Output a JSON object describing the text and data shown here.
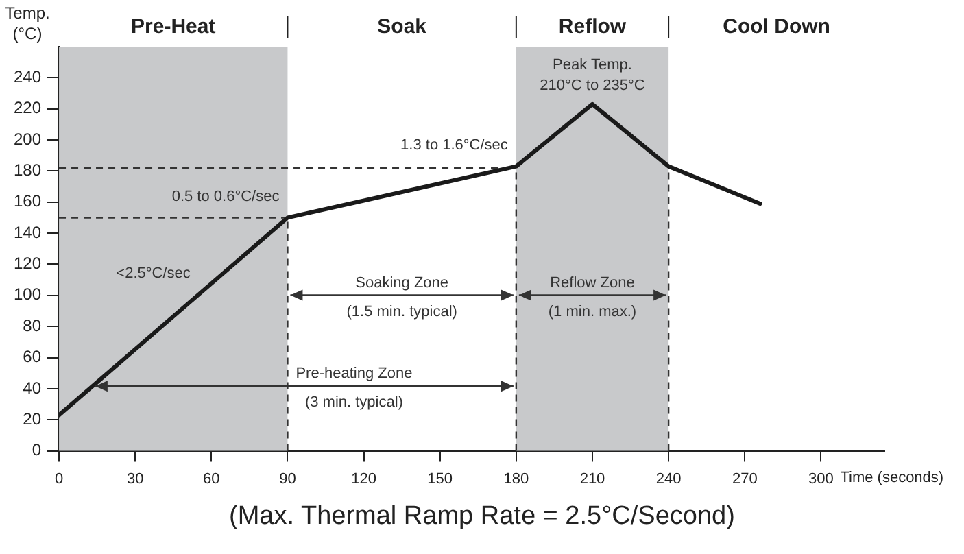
{
  "chart_data": {
    "type": "line",
    "xlabel": "Time (seconds)",
    "ylabel": "Temp.\n(°C)",
    "x": [
      0,
      90,
      180,
      210,
      240,
      276
    ],
    "series": [
      {
        "color": "#1a1a1a",
        "values": [
          23,
          150,
          183,
          223,
          183,
          159
        ]
      }
    ],
    "xlim": [
      0,
      325
    ],
    "xticks": [
      0,
      30,
      60,
      90,
      120,
      150,
      180,
      210,
      240,
      270,
      300
    ],
    "ylim": [
      0,
      260
    ],
    "yticks": [
      0,
      20,
      40,
      60,
      80,
      100,
      120,
      140,
      160,
      180,
      200,
      220,
      240
    ],
    "bands": [
      {
        "axis": "x",
        "from": 0,
        "to": 90,
        "label": "Pre-Heat",
        "color": "#c8c9cb"
      },
      {
        "axis": "x",
        "from": 180,
        "to": 240,
        "label": "Reflow",
        "color": "#c8c9cb"
      }
    ],
    "ref_lines": [
      {
        "axis": "y",
        "value": 150,
        "line_style": "dashed"
      },
      {
        "axis": "y",
        "value": 182,
        "line_style": "dashed"
      },
      {
        "axis": "x",
        "value": 90,
        "line_style": "dashed"
      },
      {
        "axis": "x",
        "value": 180,
        "line_style": "dashed"
      },
      {
        "axis": "x",
        "value": 240,
        "line_style": "dashed"
      }
    ],
    "annotations": [
      {
        "text": "<2.5°C/sec",
        "x": 55,
        "y": 100.6
      },
      {
        "text": "0.5 to 0.6°C/sec",
        "x": 90,
        "y": 150
      },
      {
        "text": "1.3 to 1.6°C/sec",
        "x": 180,
        "y": 183
      },
      {
        "text": "Peak Temp.",
        "x": 210,
        "y": 223
      },
      {
        "text": "210°C to 235°C",
        "x": 210,
        "y": 223
      },
      "Soak",
      "Cool Down",
      "Soaking Zone\n(1.5 min. typical)",
      "Reflow Zone\n(1 min. max.)",
      "Pre-heating Zone\n(3 min. typical)",
      "(Max. Thermal Ramp Rate = 2.5°C/Second)"
    ],
    "grid": false,
    "legend": false,
    "marker": "none",
    "line_style": "solid"
  }
}
